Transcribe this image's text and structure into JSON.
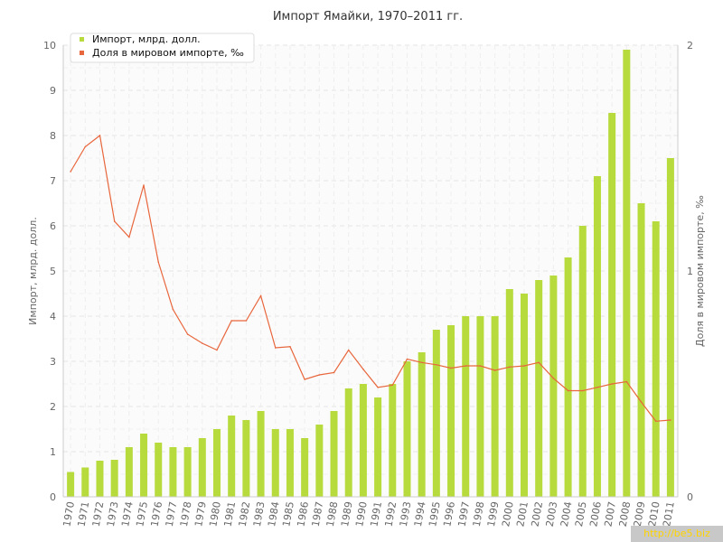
{
  "chart_data": {
    "type": "bar+line",
    "title": "Импорт Ямайки, 1970–2011 гг.",
    "ylabel_left": "Импорт, млрд. долл.",
    "ylabel_right": "Доля в мировом импорте, ‰",
    "categories": [
      "1970",
      "1971",
      "1972",
      "1973",
      "1974",
      "1975",
      "1976",
      "1977",
      "1978",
      "1979",
      "1980",
      "1981",
      "1982",
      "1983",
      "1984",
      "1985",
      "1986",
      "1987",
      "1988",
      "1989",
      "1990",
      "1991",
      "1992",
      "1993",
      "1994",
      "1995",
      "1996",
      "1997",
      "1998",
      "1999",
      "2000",
      "2001",
      "2002",
      "2003",
      "2004",
      "2005",
      "2006",
      "2007",
      "2008",
      "2009",
      "2010",
      "2011"
    ],
    "yticks_left": [
      "0",
      "1",
      "2",
      "3",
      "4",
      "5",
      "6",
      "7",
      "8",
      "9",
      "10"
    ],
    "yticks_right": [
      "0",
      "1",
      "2"
    ],
    "ylim_left": [
      0,
      10
    ],
    "ylim_right": [
      0,
      2
    ],
    "grid": true,
    "legend_position": "top-left",
    "series": [
      {
        "name": "Импорт, млрд. долл.",
        "type": "bar",
        "axis": "left",
        "color": "#b7da3c",
        "values": [
          0.55,
          0.65,
          0.8,
          0.82,
          1.1,
          1.4,
          1.2,
          1.1,
          1.1,
          1.3,
          1.5,
          1.8,
          1.7,
          1.9,
          1.5,
          1.5,
          1.3,
          1.6,
          1.9,
          2.4,
          2.5,
          2.2,
          2.5,
          3.0,
          3.2,
          3.7,
          3.8,
          4.0,
          4.0,
          4.0,
          4.6,
          4.5,
          4.8,
          4.9,
          5.3,
          6.0,
          7.1,
          8.5,
          9.9,
          6.5,
          6.1,
          7.5
        ]
      },
      {
        "name": "Доля в мировом импорте, ‰",
        "type": "line",
        "axis": "right",
        "color": "#e8663c",
        "values": [
          1.44,
          1.55,
          1.6,
          1.22,
          1.15,
          1.38,
          1.04,
          0.83,
          0.72,
          0.68,
          0.65,
          0.78,
          0.78,
          0.89,
          0.66,
          0.665,
          0.52,
          0.54,
          0.55,
          0.65,
          0.565,
          0.485,
          0.495,
          0.61,
          0.595,
          0.585,
          0.57,
          0.58,
          0.58,
          0.56,
          0.575,
          0.58,
          0.595,
          0.525,
          0.47,
          0.47,
          0.485,
          0.5,
          0.51,
          0.42,
          0.335,
          0.34
        ]
      }
    ]
  },
  "watermark": "http://be5.biz"
}
